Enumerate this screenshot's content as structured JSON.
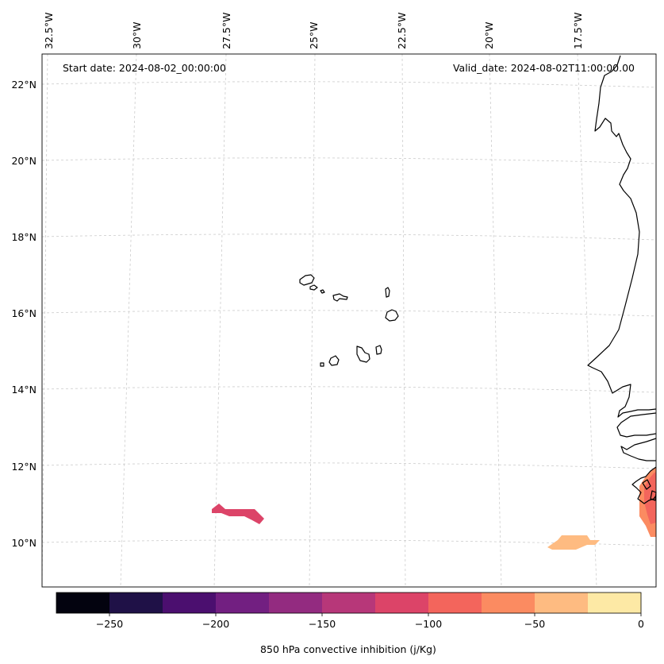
{
  "map": {
    "start_date_label": "Start date: 2024-08-02_00:00:00",
    "valid_date_label": "Valid_date: 2024-08-02T11:00:00.00",
    "top_labels": [
      "32.5°W",
      "30°W",
      "27.5°W",
      "25°W",
      "22.5°W",
      "20°W",
      "17.5°W"
    ],
    "left_labels": [
      "22°N",
      "20°N",
      "18°N",
      "16°N",
      "14°N",
      "12°N",
      "10°N"
    ],
    "gridline_color": "#cccccc",
    "coastline_color": "#000000"
  },
  "colorbar": {
    "title": "850 hPa convective inhibition (j/Kg)",
    "tick_labels": [
      "−250",
      "−200",
      "−150",
      "−100",
      "−50",
      "0"
    ],
    "bounds": [
      -275,
      0
    ],
    "step": 25,
    "colors": [
      "#03030f",
      "#1f1147",
      "#4b0f6f",
      "#721f81",
      "#932b80",
      "#b73779",
      "#dc4468",
      "#f3655c",
      "#fb8b61",
      "#febb81",
      "#fde9a5"
    ]
  }
}
